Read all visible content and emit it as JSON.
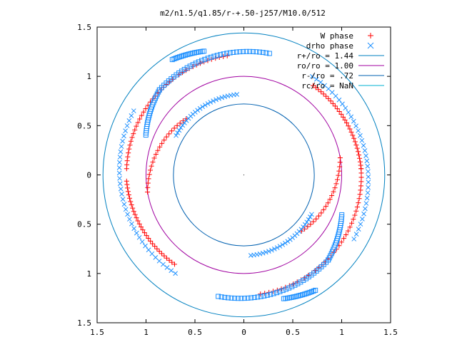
{
  "chart_data": {
    "type": "scatter",
    "title": "m2/n1.5/q1.85/r-+.50-j257/M10.0/512",
    "xlim": [
      -1.5,
      1.5
    ],
    "ylim": [
      -1.5,
      1.5
    ],
    "xticks": [
      -1.5,
      -1,
      -0.5,
      0,
      0.5,
      1,
      1.5
    ],
    "yticks": [
      -1.5,
      -1,
      -0.5,
      0,
      0.5,
      1,
      1.5
    ],
    "xtick_labels": [
      "1.5",
      "1",
      "0.5",
      "0",
      "0.5",
      "1",
      "1.5"
    ],
    "ytick_labels": [
      "1.5",
      "1",
      "0.5",
      "0",
      "0.5",
      "1",
      "1.5"
    ],
    "grid": false,
    "legend_position": "top-right",
    "legend": [
      {
        "label": "W phase",
        "color": "#ff0000",
        "marker": "plus"
      },
      {
        "label": "drho phase",
        "color": "#1e90ff",
        "marker": "cross"
      },
      {
        "label": "r+/ro = 1.44",
        "color": "#0080c0",
        "line": true
      },
      {
        "label": "ro/ro = 1.00",
        "color": "#a000a0",
        "line": true
      },
      {
        "label": "r-/ro = .72",
        "color": "#0060b0",
        "line": true
      },
      {
        "label": "rc/ro = NaN",
        "color": "#00b0d0",
        "line": true
      }
    ],
    "circles": [
      {
        "name": "r+/ro = 1.44",
        "r": 1.44,
        "color": "#0080c0"
      },
      {
        "name": "ro/ro = 1.00",
        "r": 1.0,
        "color": "#a000a0"
      },
      {
        "name": "r-/ro = .72",
        "r": 0.72,
        "color": "#0060b0"
      }
    ],
    "series": [
      {
        "name": "W phase",
        "color": "#ff0000",
        "blue_color": "#1e90ff",
        "points_polar": [
          {
            "theta": [
              -82,
              3
            ],
            "r": [
              1.22,
              1.2
            ],
            "count": 42
          },
          {
            "theta": [
              3,
              52
            ],
            "r": [
              1.2,
              1.15
            ],
            "count": 30
          },
          {
            "theta": [
              -44,
              10
            ],
            "r": [
              0.82,
              1.0
            ],
            "count": 22
          },
          {
            "theta": [
              98,
              177
            ],
            "r": [
              1.22,
              1.2
            ],
            "count": 42
          },
          {
            "theta": [
              183,
              232
            ],
            "r": [
              1.2,
              1.15
            ],
            "count": 30
          },
          {
            "theta": [
              136,
              190
            ],
            "r": [
              0.82,
              1.0
            ],
            "count": 22
          }
        ]
      },
      {
        "name": "drho phase",
        "color": "#1e90ff",
        "points_polar": [
          {
            "theta": [
              -102,
              -45
            ],
            "r": [
              1.26,
              1.22
            ],
            "count": 38
          },
          {
            "theta": [
              -45,
              -22
            ],
            "r": [
              1.22,
              1.08
            ],
            "count": 22
          },
          {
            "theta": [
              -72,
              -58
            ],
            "r": [
              1.32,
              1.38
            ],
            "count": 18
          },
          {
            "theta": [
              78,
              135
            ],
            "r": [
              1.26,
              1.22
            ],
            "count": 38
          },
          {
            "theta": [
              135,
              158
            ],
            "r": [
              1.22,
              1.08
            ],
            "count": 22
          },
          {
            "theta": [
              108,
              122
            ],
            "r": [
              1.32,
              1.38
            ],
            "count": 18
          },
          {
            "theta": [
              -30,
              55
            ],
            "r": [
              1.3,
              1.22
            ],
            "count": 36
          },
          {
            "theta": [
              150,
              235
            ],
            "r": [
              1.3,
              1.22
            ],
            "count": 36
          },
          {
            "theta": [
              95,
              150
            ],
            "r": [
              0.82,
              0.8
            ],
            "count": 26
          },
          {
            "theta": [
              -85,
              -30
            ],
            "r": [
              0.82,
              0.8
            ],
            "count": 26
          }
        ]
      }
    ]
  }
}
